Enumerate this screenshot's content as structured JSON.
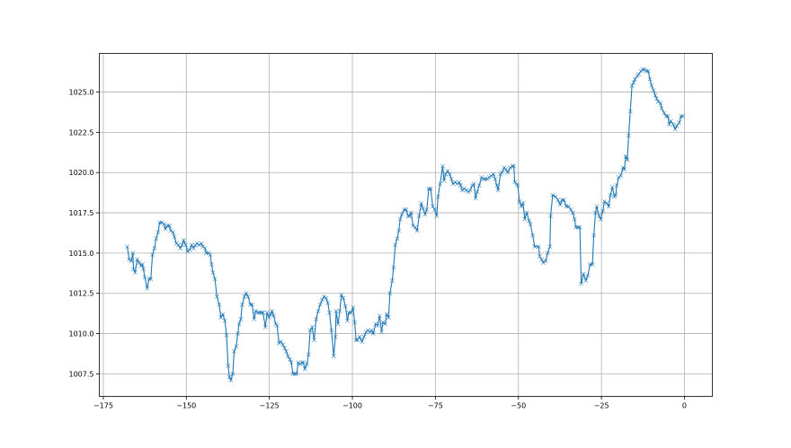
{
  "chart_data": {
    "type": "line",
    "marker": "x",
    "title": "",
    "xlabel": "",
    "ylabel": "",
    "grid": true,
    "xlim": [
      -176.2,
      8.4
    ],
    "ylim": [
      1006.1,
      1027.4
    ],
    "x_ticks": [
      -175,
      -150,
      -125,
      -100,
      -75,
      -50,
      -25,
      0
    ],
    "x_tick_labels": [
      "−175",
      "−150",
      "−125",
      "−100",
      "−75",
      "−50",
      "−25",
      "0"
    ],
    "y_ticks": [
      1007.5,
      1010.0,
      1012.5,
      1015.0,
      1017.5,
      1020.0,
      1022.5,
      1025.0
    ],
    "y_tick_labels": [
      "1007.5",
      "1010.0",
      "1012.5",
      "1015.0",
      "1017.5",
      "1020.0",
      "1022.5",
      "1025.0"
    ],
    "colors": {
      "line": "#1f77b4",
      "grid": "#b0b0b0"
    },
    "series": [
      {
        "x": [
          -167.8,
          -167.2,
          -166.6,
          -166.1,
          -165.9,
          -165.4,
          -164.8,
          -164.2,
          -163.6,
          -163.2,
          -162.9,
          -162.5,
          -161.8,
          -161.2,
          -160.7,
          -160.2,
          -159.6,
          -159.1,
          -158.5,
          -158.0,
          -157.3,
          -156.7,
          -156.3,
          -155.7,
          -155.1,
          -154.7,
          -154.0,
          -153.6,
          -153.0,
          -152.4,
          -151.8,
          -151.3,
          -150.8,
          -150.2,
          -149.6,
          -149.0,
          -148.4,
          -147.8,
          -147.3,
          -146.8,
          -146.1,
          -145.5,
          -145.0,
          -144.4,
          -144.0,
          -143.3,
          -142.8,
          -142.4,
          -142.0,
          -141.4,
          -140.8,
          -140.1,
          -139.6,
          -139.0,
          -138.4,
          -137.9,
          -137.4,
          -137.0,
          -136.6,
          -136.0,
          -135.6,
          -135.0,
          -134.5,
          -134.1,
          -133.6,
          -133.2,
          -132.5,
          -132.0,
          -131.4,
          -130.7,
          -130.2,
          -129.6,
          -129.1,
          -128.5,
          -128.0,
          -127.3,
          -126.9,
          -126.2,
          -125.7,
          -125.1,
          -124.6,
          -124.2,
          -123.7,
          -123.1,
          -122.7,
          -122.1,
          -121.5,
          -120.9,
          -120.4,
          -119.9,
          -119.4,
          -118.8,
          -118.4,
          -117.9,
          -117.3,
          -116.8,
          -116.3,
          -115.7,
          -115.2,
          -114.8,
          -114.3,
          -113.7,
          -113.2,
          -112.7,
          -112.1,
          -111.5,
          -110.9,
          -110.3,
          -109.7,
          -109.1,
          -108.5,
          -107.9,
          -107.4,
          -106.9,
          -106.3,
          -105.6,
          -105.1,
          -104.9,
          -104.3,
          -103.8,
          -103.3,
          -102.7,
          -102.1,
          -101.5,
          -101.1,
          -100.4,
          -99.8,
          -99.3,
          -98.9,
          -98.5,
          -97.8,
          -97.1,
          -96.5,
          -95.9,
          -95.3,
          -94.7,
          -94.2,
          -93.7,
          -93.0,
          -92.4,
          -91.8,
          -91.2,
          -90.8,
          -90.1,
          -89.7,
          -89.1,
          -88.7,
          -88.0,
          -87.6,
          -87.1,
          -86.5,
          -86.0,
          -85.6,
          -85.1,
          -84.4,
          -83.8,
          -83.2,
          -82.8,
          -82.3,
          -81.7,
          -81.1,
          -80.5,
          -79.9,
          -79.3,
          -78.8,
          -78.1,
          -77.6,
          -77.0,
          -76.4,
          -75.8,
          -75.2,
          -74.6,
          -74.2,
          -73.6,
          -72.8,
          -72.4,
          -71.9,
          -71.3,
          -70.7,
          -70.2,
          -69.7,
          -69.0,
          -68.4,
          -67.8,
          -67.4,
          -66.9,
          -66.3,
          -65.7,
          -65.1,
          -64.5,
          -63.9,
          -63.4,
          -62.9,
          -62.4,
          -61.8,
          -61.1,
          -60.6,
          -60.0,
          -59.3,
          -58.8,
          -58.2,
          -57.5,
          -57.0,
          -56.5,
          -56.1,
          -55.4,
          -55.0,
          -54.3,
          -53.8,
          -53.2,
          -52.5,
          -51.8,
          -51.4,
          -51.1,
          -50.5,
          -50.2,
          -49.7,
          -49.1,
          -48.6,
          -48.1,
          -47.5,
          -46.8,
          -46.4,
          -45.7,
          -45.1,
          -43.9,
          -43.6,
          -43.0,
          -42.5,
          -41.8,
          -41.2,
          -40.5,
          -40.3,
          -39.7,
          -38.8,
          -38.1,
          -37.4,
          -36.9,
          -36.3,
          -35.6,
          -34.9,
          -34.2,
          -33.6,
          -33.1,
          -32.7,
          -32.0,
          -31.5,
          -31.1,
          -30.4,
          -29.7,
          -29.1,
          -28.4,
          -27.7,
          -27.3,
          -26.8,
          -26.4,
          -25.7,
          -25.2,
          -24.6,
          -24.1,
          -23.4,
          -22.8,
          -22.3,
          -21.7,
          -21.1,
          -20.7,
          -20.4,
          -19.8,
          -19.2,
          -18.5,
          -18.1,
          -17.7,
          -17.2,
          -16.8,
          -16.3,
          -15.8,
          -15.3,
          -14.9,
          -14.2,
          -13.8,
          -13.1,
          -12.6,
          -12.0,
          -11.5,
          -10.9,
          -10.4,
          -9.9,
          -9.3,
          -8.8,
          -8.4,
          -7.9,
          -7.2,
          -6.9,
          -6.1,
          -5.5,
          -5.0,
          -4.6,
          -4.1,
          -3.4,
          -2.8,
          -2.3,
          -1.6,
          -1.0,
          -0.5
        ],
        "y": [
          1015.4,
          1014.6,
          1014.5,
          1015.0,
          1014.0,
          1013.8,
          1014.6,
          1014.4,
          1014.2,
          1014.3,
          1014.0,
          1013.5,
          1012.8,
          1013.4,
          1013.4,
          1014.9,
          1015.3,
          1015.9,
          1016.3,
          1016.9,
          1016.9,
          1016.8,
          1016.5,
          1016.7,
          1016.7,
          1016.4,
          1016.3,
          1016.0,
          1015.6,
          1015.5,
          1015.3,
          1015.5,
          1015.8,
          1015.5,
          1015.1,
          1015.2,
          1015.5,
          1015.3,
          1015.5,
          1015.6,
          1015.5,
          1015.6,
          1015.4,
          1015.3,
          1015.0,
          1015.0,
          1014.9,
          1014.3,
          1013.8,
          1013.4,
          1012.3,
          1011.8,
          1011.0,
          1011.2,
          1010.8,
          1009.9,
          1008.0,
          1007.3,
          1007.1,
          1007.5,
          1008.9,
          1009.2,
          1010.0,
          1010.6,
          1010.9,
          1011.8,
          1012.3,
          1012.5,
          1012.3,
          1011.8,
          1011.8,
          1010.9,
          1011.4,
          1011.3,
          1011.3,
          1011.3,
          1011.3,
          1010.4,
          1011.3,
          1011.0,
          1011.2,
          1011.4,
          1011.1,
          1010.6,
          1010.5,
          1009.4,
          1009.5,
          1009.3,
          1009.1,
          1008.9,
          1008.6,
          1008.4,
          1008.2,
          1007.5,
          1007.5,
          1007.5,
          1008.2,
          1008.1,
          1008.2,
          1008.2,
          1007.8,
          1008.1,
          1008.7,
          1010.2,
          1010.4,
          1009.6,
          1010.9,
          1011.4,
          1011.8,
          1012.1,
          1012.3,
          1012.2,
          1011.9,
          1011.3,
          1010.2,
          1008.6,
          1009.8,
          1011.4,
          1010.6,
          1011.4,
          1012.4,
          1012.2,
          1011.7,
          1010.8,
          1011.3,
          1011.3,
          1011.6,
          1010.7,
          1009.6,
          1009.6,
          1009.8,
          1009.5,
          1009.8,
          1010.1,
          1010.2,
          1010.1,
          1010.2,
          1010.0,
          1010.6,
          1010.5,
          1011.1,
          1010.1,
          1010.7,
          1010.6,
          1011.2,
          1011.0,
          1012.5,
          1013.3,
          1014.1,
          1015.5,
          1015.9,
          1016.4,
          1017.1,
          1017.4,
          1017.7,
          1017.7,
          1017.3,
          1017.3,
          1017.5,
          1016.7,
          1016.6,
          1016.4,
          1017.3,
          1018.1,
          1017.8,
          1017.4,
          1017.7,
          1019.0,
          1019.0,
          1017.9,
          1017.7,
          1017.3,
          1018.5,
          1019.3,
          1020.4,
          1019.5,
          1019.9,
          1020.1,
          1019.9,
          1019.6,
          1019.3,
          1019.4,
          1019.3,
          1019.4,
          1019.2,
          1018.9,
          1019.0,
          1018.9,
          1018.8,
          1018.9,
          1019.2,
          1019.3,
          1018.4,
          1018.8,
          1019.2,
          1019.7,
          1019.6,
          1019.6,
          1019.6,
          1019.7,
          1019.8,
          1019.9,
          1019.6,
          1019.2,
          1018.9,
          1019.9,
          1020.0,
          1020.3,
          1020.2,
          1020.0,
          1020.3,
          1020.4,
          1020.4,
          1019.4,
          1019.3,
          1019.2,
          1018.2,
          1017.9,
          1018.1,
          1017.1,
          1017.5,
          1017.0,
          1016.8,
          1016.1,
          1015.4,
          1015.4,
          1014.8,
          1014.6,
          1014.4,
          1014.5,
          1015.0,
          1015.4,
          1017.3,
          1018.6,
          1018.5,
          1018.3,
          1018.0,
          1018.3,
          1018.3,
          1017.9,
          1017.9,
          1017.7,
          1017.5,
          1017.1,
          1016.6,
          1016.6,
          1016.6,
          1013.1,
          1013.7,
          1013.3,
          1013.6,
          1014.3,
          1014.3,
          1016.1,
          1017.5,
          1017.9,
          1017.3,
          1017.1,
          1017.6,
          1018.2,
          1018.1,
          1017.9,
          1018.6,
          1019.1,
          1018.5,
          1018.6,
          1019.2,
          1019.7,
          1019.8,
          1020.3,
          1020.2,
          1021.0,
          1020.8,
          1022.3,
          1023.8,
          1025.4,
          1025.6,
          1025.8,
          1026.0,
          1026.1,
          1026.3,
          1026.4,
          1026.4,
          1026.3,
          1026.3,
          1025.8,
          1025.4,
          1025.1,
          1024.8,
          1024.6,
          1024.4,
          1024.3,
          1024.0,
          1023.7,
          1023.5,
          1023.5,
          1023.0,
          1023.2,
          1023.0,
          1022.7,
          1022.9,
          1023.1,
          1023.5,
          1023.5
        ]
      }
    ]
  }
}
